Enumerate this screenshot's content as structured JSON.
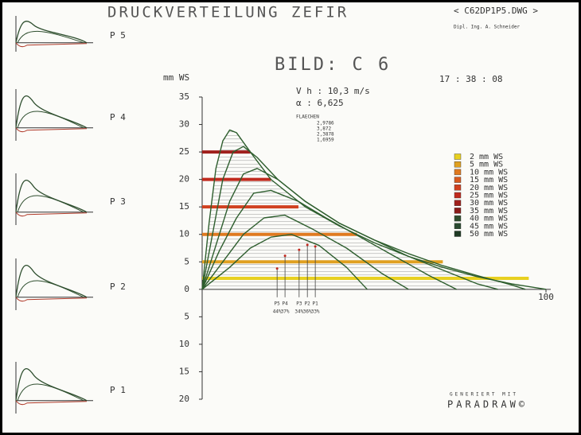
{
  "header": {
    "title": "DRUCKVERTEILUNG ZEFIR",
    "file": "< C62DP1P5.DWG >",
    "author": "Dipl. Ing. A. Schneider",
    "figure": "BILD: C 6",
    "time": "17 : 38 : 08"
  },
  "info": {
    "speed": "V h : 10,3 m/s",
    "angle": "α : 6,625",
    "areas_title": "FLAECHEN",
    "areas": [
      "2,9786",
      "3,872",
      "2,3878",
      "1,6959"
    ]
  },
  "thumbnails": [
    "P 5",
    "P 4",
    "P 3",
    "P 2",
    "P 1"
  ],
  "footer": {
    "generated": "GENERIERT MIT",
    "brand": "PARADRAW©"
  },
  "chart_data": {
    "type": "line",
    "y_label": "mm WS",
    "xlim": [
      0,
      100
    ],
    "xticks": [
      100
    ],
    "ylim": [
      -20,
      35
    ],
    "yticks": [
      35,
      30,
      25,
      20,
      15,
      10,
      5,
      0,
      {
        "value": -5,
        "label": "5"
      },
      {
        "value": -10,
        "label": "10"
      },
      {
        "value": -15,
        "label": "15"
      },
      {
        "value": -20,
        "label": "20"
      }
    ],
    "series": [
      {
        "color": "#2e5e2e",
        "x": [
          0,
          2,
          4,
          6,
          8,
          10,
          14,
          20,
          30,
          40,
          50,
          60,
          70,
          80,
          90,
          100
        ],
        "values": [
          0,
          12,
          22,
          27,
          29,
          28.5,
          25,
          20,
          15,
          11.5,
          8.5,
          6,
          4,
          2.3,
          1,
          0
        ]
      },
      {
        "color": "#2e5e2e",
        "x": [
          0,
          3,
          6,
          9,
          12,
          16,
          22,
          30,
          40,
          50,
          60,
          70,
          80,
          90,
          94
        ],
        "values": [
          0,
          10,
          20,
          25,
          26,
          24,
          20,
          16,
          12,
          9,
          6.5,
          4.3,
          2.5,
          0.8,
          0
        ]
      },
      {
        "color": "#2e5e2e",
        "x": [
          0,
          4,
          8,
          12,
          16,
          22,
          30,
          40,
          50,
          60,
          70,
          80,
          86
        ],
        "values": [
          0,
          8,
          16,
          21,
          22,
          20,
          16,
          12,
          9,
          6,
          3.5,
          1,
          0
        ]
      },
      {
        "color": "#2e5e2e",
        "x": [
          0,
          5,
          10,
          15,
          20,
          28,
          36,
          46,
          56,
          66,
          74
        ],
        "values": [
          0,
          7,
          13,
          17.5,
          18,
          16,
          13,
          9.5,
          6,
          2.5,
          0
        ]
      },
      {
        "color": "#2e5e2e",
        "x": [
          0,
          6,
          12,
          18,
          24,
          32,
          42,
          52,
          60
        ],
        "values": [
          0,
          5,
          10,
          13,
          13.5,
          11,
          7.5,
          3,
          0
        ]
      },
      {
        "color": "#2e5e2e",
        "x": [
          0,
          8,
          14,
          20,
          26,
          34,
          42,
          48
        ],
        "values": [
          0,
          4,
          7.5,
          9.5,
          10,
          8,
          4,
          0
        ]
      }
    ],
    "bands": [
      {
        "value": 2,
        "color": "#e8d020",
        "x_end": 95
      },
      {
        "value": 5,
        "color": "#e0a020",
        "x_end": 70
      },
      {
        "value": 10,
        "color": "#e07a20",
        "x_end": 45
      },
      {
        "value": 15,
        "color": "#d04020",
        "x_end": 28
      },
      {
        "value": 20,
        "color": "#c02a1e",
        "x_end": 20
      },
      {
        "value": 25,
        "color": "#a0201c",
        "x_end": 14
      }
    ],
    "sensors": {
      "labels": [
        "P5",
        "P4",
        "P3",
        "P2",
        "P1"
      ],
      "percents": [
        "44%",
        "37%",
        "34%",
        "36%",
        "33%"
      ],
      "x": [
        21.8,
        24.1,
        28.2,
        30.6,
        32.9
      ],
      "values": [
        3.8,
        6.1,
        7.2,
        8.1,
        7.8
      ]
    },
    "legend": [
      {
        "name": "2 mm WS",
        "color": "#e8d020"
      },
      {
        "name": "5 mm WS",
        "color": "#e0a020"
      },
      {
        "name": "10 mm WS",
        "color": "#e07a20"
      },
      {
        "name": "15 mm WS",
        "color": "#d85a20"
      },
      {
        "name": "20 mm WS",
        "color": "#d04020"
      },
      {
        "name": "25 mm WS",
        "color": "#c02a1e"
      },
      {
        "name": "30 mm WS",
        "color": "#a0201c"
      },
      {
        "name": "35 mm WS",
        "color": "#8a1c1a"
      },
      {
        "name": "40 mm WS",
        "color": "#2e4e2e"
      },
      {
        "name": "45 mm WS",
        "color": "#2a4a30"
      },
      {
        "name": "50 mm WS",
        "color": "#1e3a24"
      }
    ]
  }
}
